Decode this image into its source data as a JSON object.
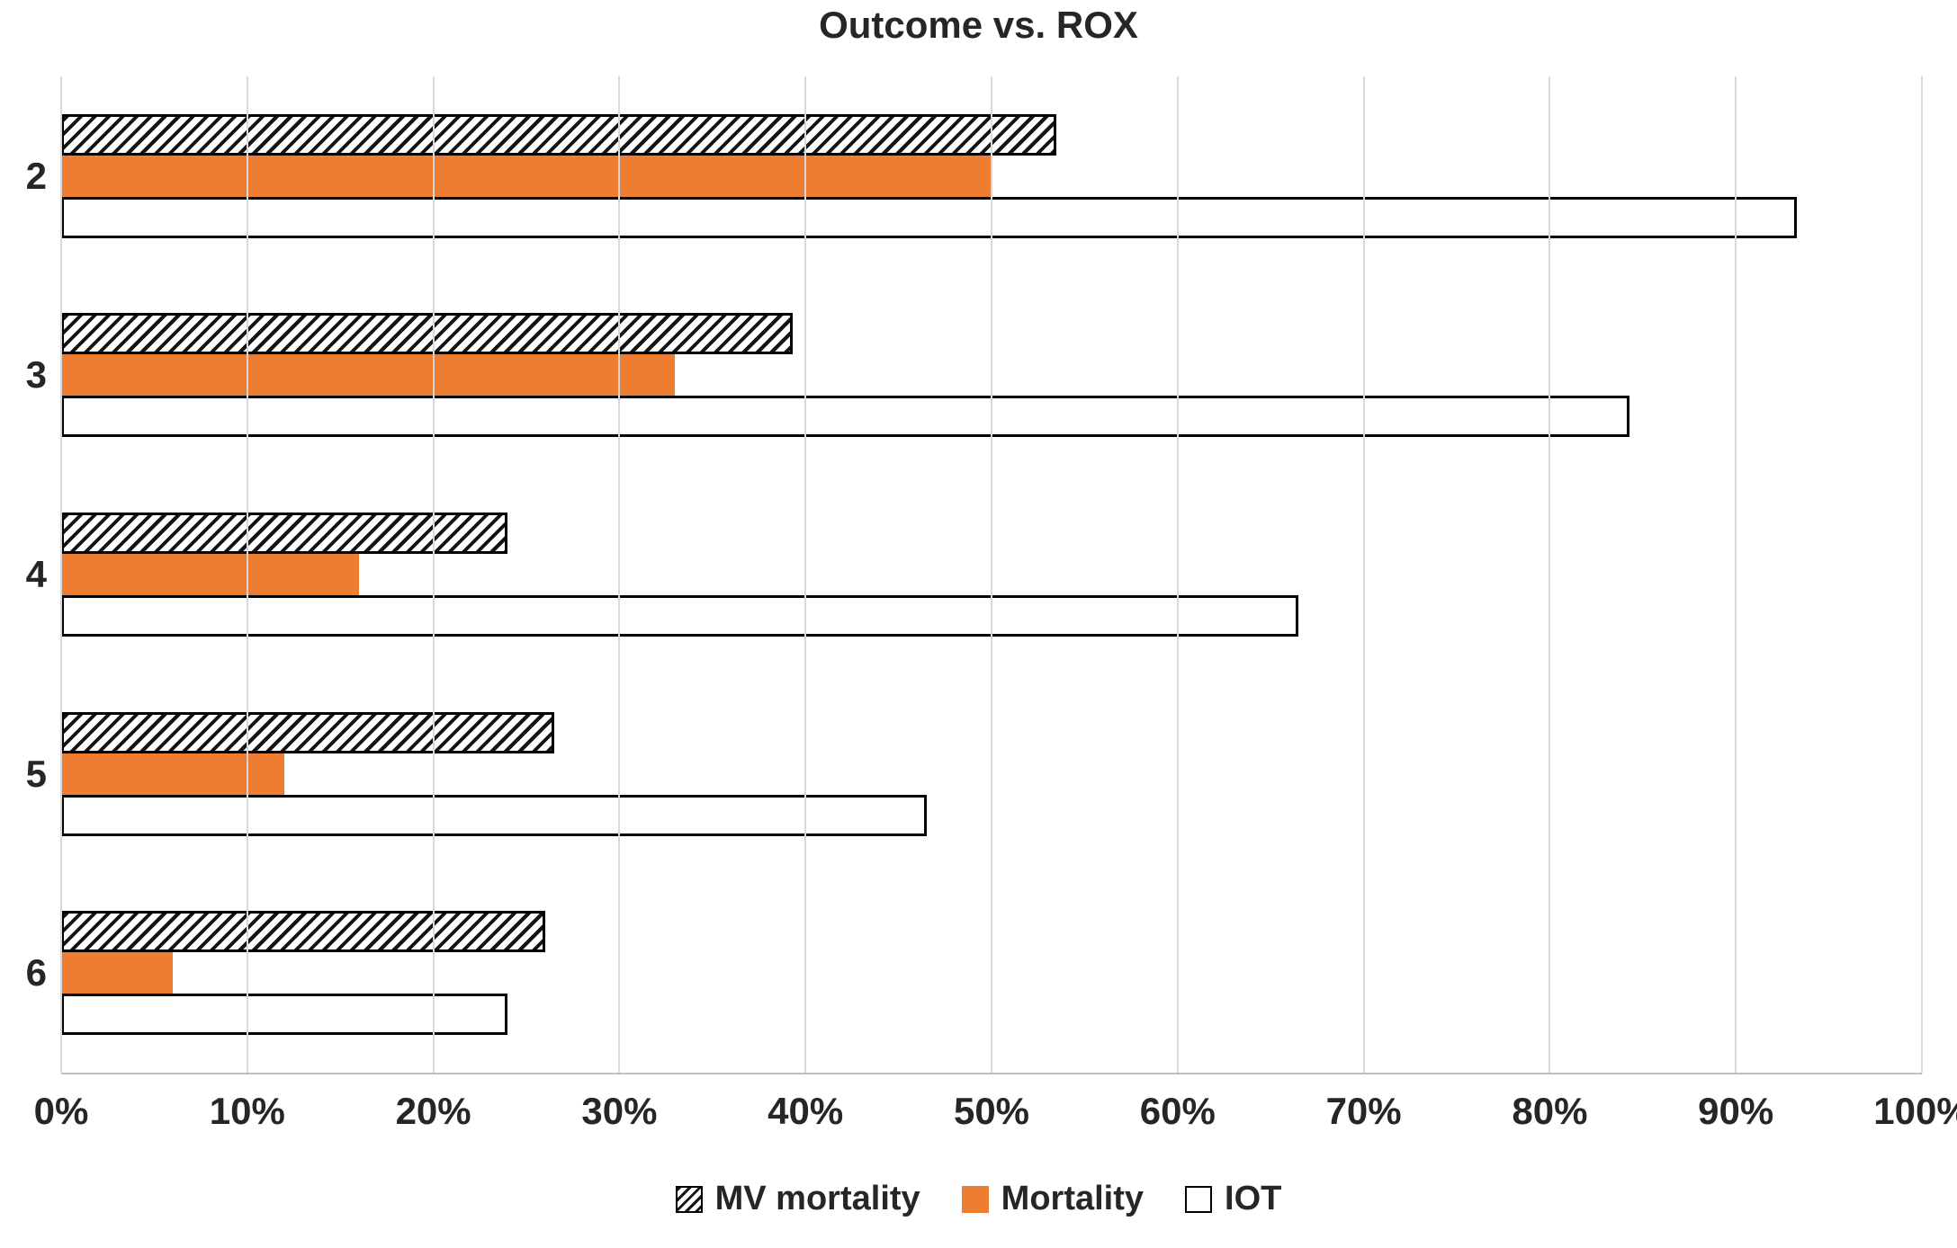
{
  "chart_data": {
    "type": "bar",
    "orientation": "horizontal",
    "title": "Outcome vs. ROX",
    "categories": [
      "2",
      "3",
      "4",
      "5",
      "6"
    ],
    "series": [
      {
        "name": "MV mortality",
        "style": "hatched",
        "values": [
          53.5,
          39.3,
          24.0,
          26.5,
          26.0
        ]
      },
      {
        "name": "Mortality",
        "style": "solid-orange",
        "values": [
          50.0,
          33.0,
          16.0,
          12.0,
          6.0
        ]
      },
      {
        "name": "IOT",
        "style": "white-outline",
        "values": [
          93.3,
          84.3,
          66.5,
          46.5,
          24.0
        ]
      }
    ],
    "x_ticks": [
      "0%",
      "10%",
      "20%",
      "30%",
      "40%",
      "50%",
      "60%",
      "70%",
      "80%",
      "90%",
      "100%"
    ],
    "xlim": [
      0,
      100
    ],
    "grid": true,
    "legend_position": "bottom",
    "colors": {
      "orange": "#ED7D31",
      "hatch": "#000000",
      "gridline": "#D9D9D9",
      "axis_line": "#BFBFBF",
      "text": "#262626"
    }
  }
}
